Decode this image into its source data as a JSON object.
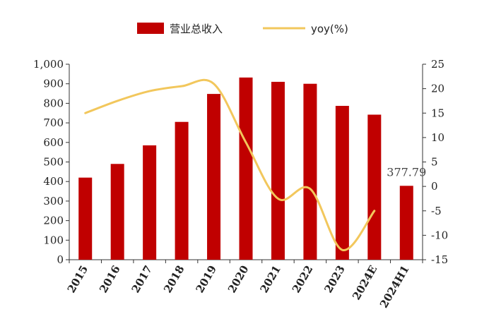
{
  "chart_data": {
    "type": "bar",
    "categories": [
      "2015",
      "2016",
      "2017",
      "2018",
      "2019",
      "2020",
      "2021",
      "2022",
      "2023",
      "2024E",
      "2024H1"
    ],
    "series": [
      {
        "name": "营业总收入",
        "type": "bar",
        "axis": "left",
        "color": "#c00000",
        "values": [
          420,
          490,
          585,
          705,
          848,
          932,
          910,
          900,
          787,
          742,
          378
        ]
      },
      {
        "name": "yoy(%)",
        "type": "line",
        "axis": "right",
        "color": "#f2c75c",
        "values": [
          15,
          17.5,
          19.5,
          20.5,
          21,
          9,
          -2.5,
          -0.5,
          -13,
          -5,
          null
        ]
      }
    ],
    "data_labels": [
      {
        "category": "2024H1",
        "series": "营业总收入",
        "text": "377.79"
      }
    ],
    "y_left": {
      "range": [
        0,
        1000
      ],
      "ticks": [
        0,
        100,
        200,
        300,
        400,
        500,
        600,
        700,
        800,
        900,
        1000
      ],
      "tick_labels": [
        "0",
        "100",
        "200",
        "300",
        "400",
        "500",
        "600",
        "700",
        "800",
        "900",
        "1,000"
      ]
    },
    "y_right": {
      "range": [
        -15,
        25
      ],
      "ticks": [
        -15,
        -10,
        -5,
        0,
        5,
        10,
        15,
        20,
        25
      ],
      "tick_labels": [
        "-15",
        "-10",
        "-5",
        "0",
        "5",
        "10",
        "15",
        "20",
        "25"
      ]
    },
    "grid": false,
    "legend_position": "top"
  }
}
